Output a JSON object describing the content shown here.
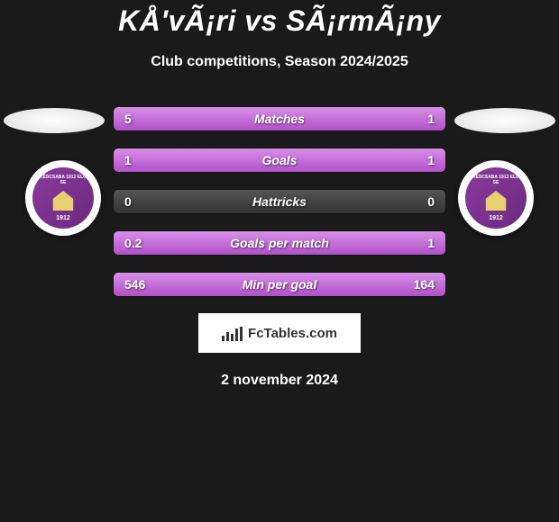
{
  "title": "KÅ'vÃ¡ri vs SÃ¡rmÃ¡ny",
  "subtitle": "Club competitions, Season 2024/2025",
  "date": "2 november 2024",
  "fctables_label": "FcTables.com",
  "club_badge": {
    "top_text": "BÉKÉSCSABA 1912 ELŐRE SE",
    "year": "1912",
    "primary_color": "#8a3a9e",
    "accent_color": "#e8d070"
  },
  "colors": {
    "bar_fill": "#b050c8",
    "bar_bg": "#3a3a3a",
    "background": "#1a1a1a"
  },
  "stats": [
    {
      "label": "Matches",
      "left_val": "5",
      "right_val": "1",
      "left_pct": 83.3,
      "right_pct": 16.7
    },
    {
      "label": "Goals",
      "left_val": "1",
      "right_val": "1",
      "left_pct": 50,
      "right_pct": 50
    },
    {
      "label": "Hattricks",
      "left_val": "0",
      "right_val": "0",
      "left_pct": 0,
      "right_pct": 0
    },
    {
      "label": "Goals per match",
      "left_val": "0.2",
      "right_val": "1",
      "left_pct": 16.7,
      "right_pct": 83.3
    },
    {
      "label": "Min per goal",
      "left_val": "546",
      "right_val": "164",
      "left_pct": 76.9,
      "right_pct": 23.1
    }
  ]
}
